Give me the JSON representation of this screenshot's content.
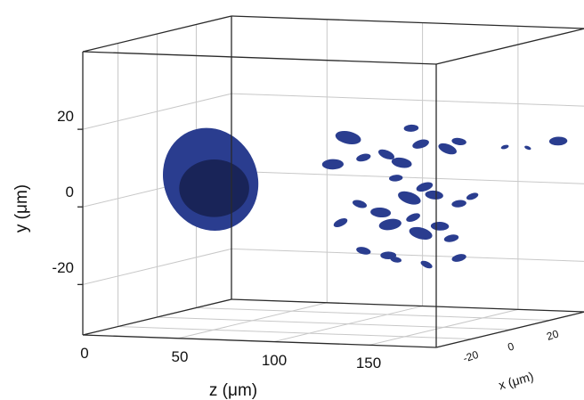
{
  "chart_data": {
    "type": "scatter",
    "projection": "3d",
    "grid": true,
    "axes": {
      "z": {
        "label": "z (μm)",
        "ticks": [
          "0",
          "50",
          "100",
          "150"
        ],
        "range": [
          0,
          185
        ]
      },
      "y": {
        "label": "y (μm)",
        "ticks": [
          "20",
          "0",
          "-20"
        ],
        "range": [
          -33,
          40
        ]
      },
      "x": {
        "label": "x (μm)",
        "ticks": [
          "-20",
          "0",
          "20"
        ],
        "range": [
          -38,
          38
        ]
      }
    },
    "color": "#2a3d8f",
    "series": [
      {
        "name": "",
        "points": [
          {
            "z": 28,
            "y": 3,
            "size": 8
          },
          {
            "z": 100,
            "y": 15,
            "size": 2
          },
          {
            "z": 92,
            "y": 8,
            "size": 1.6
          },
          {
            "z": 108,
            "y": 10,
            "size": 1
          },
          {
            "z": 120,
            "y": 11,
            "size": 1.2
          },
          {
            "z": 128,
            "y": 9,
            "size": 1.5
          },
          {
            "z": 133,
            "y": 18,
            "size": 1
          },
          {
            "z": 138,
            "y": 14,
            "size": 1.2
          },
          {
            "z": 152,
            "y": 13,
            "size": 1.4
          },
          {
            "z": 158,
            "y": 15,
            "size": 1
          },
          {
            "z": 125,
            "y": 5,
            "size": 0.9
          },
          {
            "z": 140,
            "y": 3,
            "size": 1.2
          },
          {
            "z": 132,
            "y": 0,
            "size": 1.8
          },
          {
            "z": 145,
            "y": 1,
            "size": 1.3
          },
          {
            "z": 158,
            "y": -1,
            "size": 1
          },
          {
            "z": 165,
            "y": 1,
            "size": 0.8
          },
          {
            "z": 106,
            "y": -2,
            "size": 1
          },
          {
            "z": 117,
            "y": -4,
            "size": 1.5
          },
          {
            "z": 122,
            "y": -7,
            "size": 1.7
          },
          {
            "z": 134,
            "y": -5,
            "size": 1
          },
          {
            "z": 138,
            "y": -9,
            "size": 1.8
          },
          {
            "z": 148,
            "y": -7,
            "size": 1.3
          },
          {
            "z": 154,
            "y": -10,
            "size": 1
          },
          {
            "z": 96,
            "y": -7,
            "size": 1
          },
          {
            "z": 108,
            "y": -14,
            "size": 1
          },
          {
            "z": 121,
            "y": -15,
            "size": 1.1
          },
          {
            "z": 158,
            "y": -15,
            "size": 1
          },
          {
            "z": 141,
            "y": -17,
            "size": 0.8
          },
          {
            "z": 125,
            "y": -16,
            "size": 0.7
          },
          {
            "z": 210,
            "y": 16,
            "size": 1.3
          },
          {
            "z": 182,
            "y": 14,
            "size": 0.4
          },
          {
            "z": 194,
            "y": 14,
            "size": 0.3
          }
        ]
      }
    ]
  }
}
